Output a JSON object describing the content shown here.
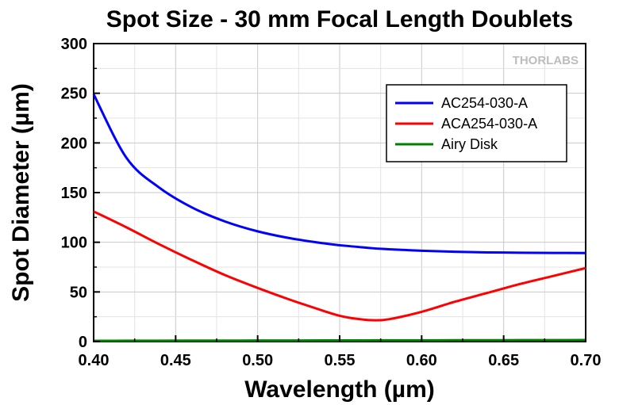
{
  "chart_data": {
    "type": "line",
    "title": "Spot Size - 30 mm Focal Length Doublets",
    "xlabel": "Wavelength (µm)",
    "ylabel": "Spot Diameter (µm)",
    "xlim": [
      0.4,
      0.7
    ],
    "ylim": [
      0,
      300
    ],
    "x_ticks": [
      "0.40",
      "0.45",
      "0.50",
      "0.55",
      "0.60",
      "0.65",
      "0.70"
    ],
    "y_ticks": [
      "0",
      "50",
      "100",
      "150",
      "200",
      "250",
      "300"
    ],
    "grid": true,
    "legend_position": "top-right",
    "watermark": "THORLABS",
    "x": [
      0.4,
      0.42,
      0.44,
      0.46,
      0.48,
      0.5,
      0.52,
      0.54,
      0.55,
      0.56,
      0.57,
      0.58,
      0.6,
      0.62,
      0.64,
      0.66,
      0.68,
      0.7
    ],
    "series": [
      {
        "name": "AC254-030-A",
        "color": "#0000ff",
        "values": [
          249,
          185,
          155,
          135,
          121,
          111,
          104,
          99,
          97,
          95.5,
          94,
          93,
          91.5,
          90.5,
          89.8,
          89.5,
          89.3,
          89.2
        ]
      },
      {
        "name": "ACA254-030-A",
        "color": "#ff0000",
        "values": [
          131,
          115,
          98,
          82,
          67,
          54,
          42,
          31,
          26,
          23,
          21.5,
          22.5,
          30,
          40,
          49,
          58,
          66,
          74
        ]
      },
      {
        "name": "Airy Disk",
        "color": "#008000",
        "values": [
          0.8,
          0.85,
          0.9,
          0.95,
          1.0,
          1.05,
          1.1,
          1.15,
          1.2,
          1.2,
          1.25,
          1.25,
          1.3,
          1.35,
          1.4,
          1.45,
          1.5,
          1.55
        ]
      }
    ]
  }
}
